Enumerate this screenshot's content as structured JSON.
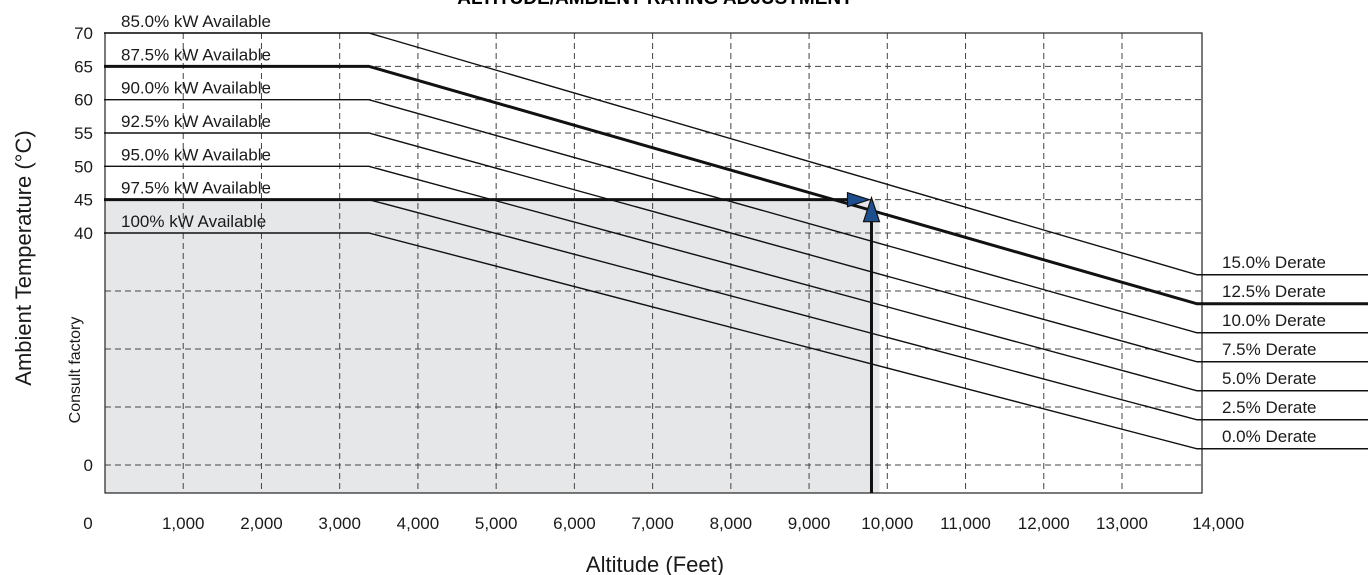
{
  "chart_data": {
    "type": "line",
    "title": "ALTITUDE/AMBIENT RATING ADJUSTMENT",
    "xlabel": "Altitude (Feet)",
    "ylabel": "Ambient Temperature (°C)",
    "y_side_note": "Consult factory",
    "xlim": [
      0,
      14000
    ],
    "x_ticks": [
      "0",
      "1,000",
      "2,000",
      "3,000",
      "4,000",
      "5,000",
      "6,000",
      "7,000",
      "8,000",
      "9,000",
      "10,000",
      "11,000",
      "12,000",
      "13,000",
      "14,000"
    ],
    "y_ticks": [
      "70",
      "65",
      "60",
      "55",
      "50",
      "45",
      "40",
      "0"
    ],
    "grid": true,
    "shaded_region": {
      "x": [
        0,
        9900
      ],
      "y_top": 45
    },
    "series": [
      {
        "name": "85.0% kW Available",
        "right_label": "15.0% Derate",
        "x": [
          0,
          3500,
          13800
        ],
        "y": [
          70,
          70,
          32.8
        ],
        "bold": false
      },
      {
        "name": "87.5% kW Available",
        "right_label": "12.5% Derate",
        "x": [
          0,
          3500,
          13800
        ],
        "y": [
          65,
          65,
          27.8
        ],
        "bold": true
      },
      {
        "name": "90.0% kW Available",
        "right_label": "10.0% Derate",
        "x": [
          0,
          3500,
          13800
        ],
        "y": [
          60,
          60,
          22.8
        ],
        "bold": false
      },
      {
        "name": "92.5% kW Available",
        "right_label": "7.5% Derate",
        "x": [
          0,
          3500,
          13800
        ],
        "y": [
          55,
          55,
          17.8
        ],
        "bold": false
      },
      {
        "name": "95.0% kW Available",
        "right_label": "5.0% Derate",
        "x": [
          0,
          3500,
          13800
        ],
        "y": [
          50,
          50,
          12.8
        ],
        "bold": false
      },
      {
        "name": "97.5% kW Available",
        "right_label": "2.5% Derate",
        "x": [
          0,
          3500,
          13800
        ],
        "y": [
          45,
          45,
          7.8
        ],
        "bold": false
      },
      {
        "name": "100% kW Available",
        "right_label": "0.0% Derate",
        "x": [
          0,
          3500,
          13800
        ],
        "y": [
          40,
          40,
          2.8
        ],
        "bold": false
      }
    ],
    "example_path": {
      "altitude": 9900,
      "temperature": 45
    }
  }
}
